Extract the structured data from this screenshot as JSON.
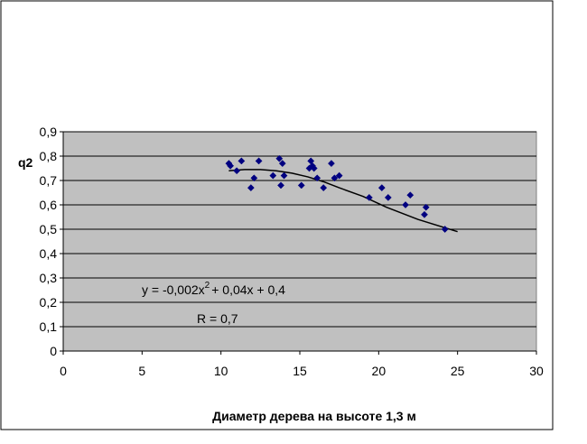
{
  "chart_data": {
    "type": "scatter",
    "title": "",
    "xlabel": "Диаметр дерева на высоте 1,3 м",
    "ylabel": "q2",
    "xlim": [
      0,
      30
    ],
    "ylim": [
      0,
      0.9
    ],
    "x_ticks": [
      0,
      5,
      10,
      15,
      20,
      25,
      30
    ],
    "y_ticks": [
      0,
      0.1,
      0.2,
      0.3,
      0.4,
      0.5,
      0.6,
      0.7,
      0.8,
      0.9
    ],
    "x_tick_labels": [
      "0",
      "5",
      "10",
      "15",
      "20",
      "25",
      "30"
    ],
    "y_tick_labels": [
      "0",
      "0,1",
      "0,2",
      "0,3",
      "0,4",
      "0,5",
      "0,6",
      "0,7",
      "0,8",
      "0,9"
    ],
    "grid": "horizontal",
    "plot_background": "#c0c0c0",
    "marker_color": "#000080",
    "series": [
      {
        "x": [
          10.5,
          10.6,
          11.0,
          11.3,
          11.9,
          12.1,
          12.4,
          13.3,
          13.7,
          13.8,
          13.9,
          14.0,
          15.1,
          15.6,
          15.7,
          15.8,
          15.9,
          16.1,
          16.5,
          17.0,
          17.2,
          17.5,
          19.4,
          20.2,
          20.6,
          21.7,
          22.0,
          22.9,
          23.0,
          24.2
        ],
        "y": [
          0.77,
          0.76,
          0.74,
          0.78,
          0.67,
          0.71,
          0.78,
          0.72,
          0.79,
          0.68,
          0.77,
          0.72,
          0.68,
          0.75,
          0.78,
          0.76,
          0.75,
          0.71,
          0.67,
          0.77,
          0.71,
          0.72,
          0.63,
          0.67,
          0.63,
          0.6,
          0.64,
          0.56,
          0.59,
          0.5
        ]
      }
    ],
    "trendline": {
      "type": "polynomial",
      "x_start": 10.5,
      "x_end": 25,
      "y_values": [
        0.74,
        0.745,
        0.745,
        0.74,
        0.73,
        0.715,
        0.695,
        0.67,
        0.635,
        0.59,
        0.54,
        0.49
      ],
      "x_values": [
        10.5,
        11.5,
        12.5,
        13.5,
        14.5,
        15.5,
        16.5,
        17.5,
        19.0,
        20.5,
        22.5,
        25.0
      ],
      "color": "#000000"
    },
    "annotations": {
      "equation_prefix": "y = -0,002x",
      "equation_exponent": "2",
      "equation_suffix": "+ 0,04x + 0,4",
      "r_value": "R = 0,7"
    }
  }
}
